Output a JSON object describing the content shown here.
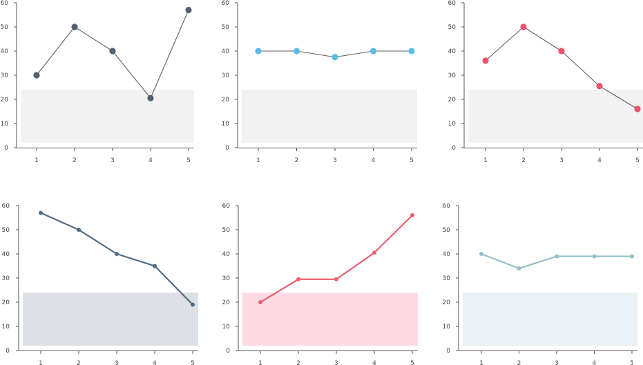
{
  "chart_data": [
    {
      "type": "line",
      "categories": [
        "1",
        "2",
        "3",
        "4",
        "5"
      ],
      "y_ticks": [
        "0",
        "10",
        "20",
        "30",
        "40",
        "50",
        "60"
      ],
      "ylim": [
        0,
        60
      ],
      "band": [
        2,
        24
      ],
      "band_color": "#f2f2f2",
      "line_color": "#5f5f5f",
      "point_color": "#526173",
      "series": [
        {
          "values": [
            30,
            50,
            40,
            20.5,
            57
          ]
        }
      ]
    },
    {
      "type": "line",
      "categories": [
        "1",
        "2",
        "3",
        "4",
        "5"
      ],
      "y_ticks": [
        "0",
        "10",
        "20",
        "30",
        "40",
        "50",
        "60"
      ],
      "ylim": [
        0,
        60
      ],
      "band": [
        2,
        24
      ],
      "band_color": "#f2f2f2",
      "line_color": "#5f5f5f",
      "point_color": "#5bbbe8",
      "series": [
        {
          "values": [
            40,
            40,
            37.5,
            40,
            40
          ]
        }
      ]
    },
    {
      "type": "line",
      "categories": [
        "1",
        "2",
        "3",
        "4",
        "5"
      ],
      "y_ticks": [
        "0",
        "10",
        "20",
        "30",
        "40",
        "50",
        "60"
      ],
      "ylim": [
        0,
        60
      ],
      "band": [
        2,
        24
      ],
      "band_color": "#f2f2f2",
      "line_color": "#5f5f5f",
      "point_color": "#e8546b",
      "series": [
        {
          "values": [
            36,
            50,
            40,
            25.5,
            16
          ]
        }
      ]
    },
    {
      "type": "line",
      "categories": [
        "1",
        "2",
        "3",
        "4",
        "5"
      ],
      "y_ticks": [
        "0",
        "10",
        "20",
        "30",
        "40",
        "50",
        "60"
      ],
      "ylim": [
        0,
        60
      ],
      "band": [
        2,
        24
      ],
      "band_color": "#dde0e4",
      "line_color": "#526a82",
      "point_color": "#526a82",
      "series": [
        {
          "values": [
            57,
            50,
            40,
            35,
            19
          ]
        }
      ]
    },
    {
      "type": "line",
      "categories": [
        "1",
        "2",
        "3",
        "4",
        "5"
      ],
      "y_ticks": [
        "0",
        "10",
        "20",
        "30",
        "40",
        "50",
        "60"
      ],
      "ylim": [
        0,
        60
      ],
      "band": [
        2,
        24
      ],
      "band_color": "#fcdce2",
      "line_color": "#e8606f",
      "point_color": "#e8606f",
      "series": [
        {
          "values": [
            20,
            29.5,
            29.5,
            40.5,
            56
          ]
        }
      ]
    },
    {
      "type": "line",
      "categories": [
        "1",
        "2",
        "3",
        "4",
        "5"
      ],
      "y_ticks": [
        "0",
        "10",
        "20",
        "30",
        "40",
        "50",
        "60"
      ],
      "ylim": [
        0,
        60
      ],
      "band": [
        2,
        24
      ],
      "band_color": "#eaf1f4",
      "line_color": "#94c0c8",
      "point_color": "#94c0c8",
      "series": [
        {
          "values": [
            40,
            34,
            39,
            39,
            39
          ]
        }
      ]
    }
  ]
}
